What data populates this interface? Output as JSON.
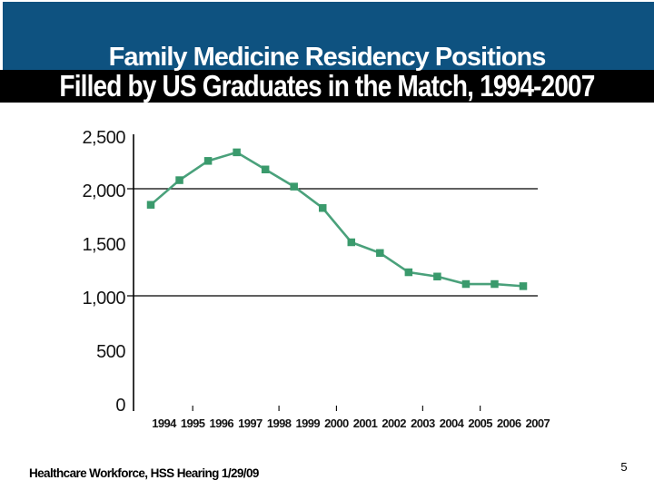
{
  "slide": {
    "title_line1": "Family Medicine Residency Positions",
    "title_line2": "Filled by US Graduates in the Match, 1994-2007",
    "footer": "Healthcare Workforce, HSS Hearing 1/29/09",
    "page_number": "5"
  },
  "colors": {
    "band_blue": "#0e5280",
    "band_black": "#000000",
    "line_green": "#4aa17b",
    "marker_green": "#3a9a6c",
    "axis_black": "#000000",
    "title_text": "#ffffff"
  },
  "chart_data": {
    "type": "line",
    "title": "Family Medicine Residency Positions Filled by US Graduates in the Match, 1994-2007",
    "categories": [
      "1994",
      "1995",
      "1996",
      "1997",
      "1998",
      "1999",
      "2000",
      "2001",
      "2002",
      "2003",
      "2004",
      "2005",
      "2006",
      "2007"
    ],
    "values": [
      1850,
      2080,
      2260,
      2340,
      2180,
      2020,
      1820,
      1500,
      1400,
      1220,
      1180,
      1110,
      1110,
      1090
    ],
    "ylim": [
      0,
      2500
    ],
    "yticks": [
      {
        "value": 0,
        "label": "0"
      },
      {
        "value": 500,
        "label": "500"
      },
      {
        "value": 1000,
        "label": "1,000"
      },
      {
        "value": 1500,
        "label": "1,500"
      },
      {
        "value": 2000,
        "label": "2,000"
      },
      {
        "value": 2500,
        "label": "2,500"
      }
    ],
    "gridline_values": [
      2000,
      1000
    ],
    "xticks_minor": [
      "1995",
      "1998",
      "2000",
      "2003",
      "2005"
    ],
    "legend": "none",
    "grid": "horizontal-at-1000-and-2000",
    "marker": "square"
  }
}
